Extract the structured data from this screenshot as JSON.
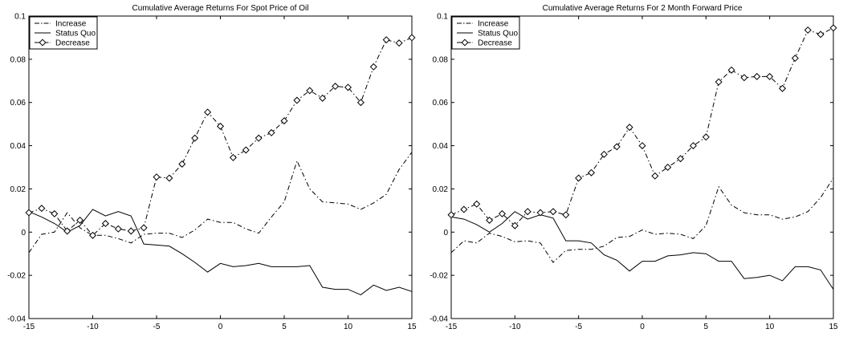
{
  "chart_data": [
    {
      "type": "line",
      "title": "Cumulative Average Returns For Spot Price of Oil",
      "xlabel": "",
      "ylabel": "",
      "xlim": [
        -15,
        15
      ],
      "ylim": [
        -0.04,
        0.1
      ],
      "xticks": [
        -15,
        -10,
        -5,
        0,
        5,
        10,
        15
      ],
      "yticks": [
        -0.04,
        -0.02,
        0,
        0.02,
        0.04,
        0.06,
        0.08,
        0.1
      ],
      "ytick_labels": [
        "-0.04",
        "-0.02",
        "0",
        "0.02",
        "0.04",
        "0.06",
        "0.08",
        "0.1"
      ],
      "grid": false,
      "legend_position": "top-left",
      "x": [
        -15,
        -14,
        -13,
        -12,
        -11,
        -10,
        -9,
        -8,
        -7,
        -6,
        -5,
        -4,
        -3,
        -2,
        -1,
        0,
        1,
        2,
        3,
        4,
        5,
        6,
        7,
        8,
        9,
        10,
        11,
        12,
        13,
        14,
        15
      ],
      "series": [
        {
          "name": "Increase",
          "style": "dashdot",
          "values": [
            -0.0095,
            -0.001,
            0.0,
            0.009,
            0.002,
            -0.0015,
            -0.0015,
            -0.003,
            -0.005,
            -0.001,
            -0.0005,
            -0.0005,
            -0.0025,
            0.001,
            0.006,
            0.0045,
            0.0045,
            0.0015,
            -0.0005,
            0.007,
            0.014,
            0.033,
            0.02,
            0.014,
            0.0135,
            0.013,
            0.0105,
            0.0135,
            0.0175,
            0.029,
            0.037
          ]
        },
        {
          "name": "Status Quo",
          "style": "solid",
          "values": [
            0.0095,
            0.007,
            0.004,
            0.0,
            0.003,
            0.0105,
            0.0075,
            0.0095,
            0.0075,
            -0.0055,
            -0.006,
            -0.0065,
            -0.01,
            -0.014,
            -0.0185,
            -0.0145,
            -0.016,
            -0.0155,
            -0.0145,
            -0.016,
            -0.016,
            -0.016,
            -0.0155,
            -0.0255,
            -0.0265,
            -0.0265,
            -0.029,
            -0.0245,
            -0.027,
            -0.0255,
            -0.0275
          ]
        },
        {
          "name": "Decrease",
          "style": "dashdot-diamond",
          "values": [
            0.009,
            0.011,
            0.0085,
            0.0005,
            0.0055,
            -0.0015,
            0.004,
            0.0015,
            0.0005,
            0.002,
            0.0255,
            0.025,
            0.0315,
            0.0435,
            0.0555,
            0.049,
            0.0345,
            0.038,
            0.0435,
            0.046,
            0.0515,
            0.061,
            0.0655,
            0.062,
            0.0675,
            0.067,
            0.06,
            0.0765,
            0.089,
            0.0875,
            0.09
          ]
        }
      ]
    },
    {
      "type": "line",
      "title": "Cumulative Average Returns For 2 Month Forward Price",
      "xlabel": "",
      "ylabel": "",
      "xlim": [
        -15,
        15
      ],
      "ylim": [
        -0.04,
        0.1
      ],
      "xticks": [
        -15,
        -10,
        -5,
        0,
        5,
        10,
        15
      ],
      "yticks": [
        -0.04,
        -0.02,
        0,
        0.02,
        0.04,
        0.06,
        0.08,
        0.1
      ],
      "ytick_labels": [
        "-0.04",
        "-0.02",
        "0",
        "0.02",
        "0.04",
        "0.06",
        "0.08",
        "0.1"
      ],
      "grid": false,
      "legend_position": "top-left",
      "x": [
        -15,
        -14,
        -13,
        -12,
        -11,
        -10,
        -9,
        -8,
        -7,
        -6,
        -5,
        -4,
        -3,
        -2,
        -1,
        0,
        1,
        2,
        3,
        4,
        5,
        6,
        7,
        8,
        9,
        10,
        11,
        12,
        13,
        14,
        15
      ],
      "series": [
        {
          "name": "Increase",
          "style": "dashdot",
          "values": [
            -0.0095,
            -0.004,
            -0.005,
            -0.0005,
            -0.002,
            -0.0045,
            -0.004,
            -0.005,
            -0.014,
            -0.0085,
            -0.008,
            -0.008,
            -0.0065,
            -0.0025,
            -0.002,
            0.001,
            -0.001,
            -0.0005,
            -0.001,
            -0.003,
            0.003,
            0.021,
            0.0125,
            0.009,
            0.008,
            0.008,
            0.006,
            0.007,
            0.0095,
            0.016,
            0.025
          ]
        },
        {
          "name": "Status Quo",
          "style": "solid",
          "values": [
            0.007,
            0.006,
            0.0035,
            0.0,
            0.004,
            0.0095,
            0.006,
            0.008,
            0.0065,
            -0.004,
            -0.004,
            -0.005,
            -0.0105,
            -0.013,
            -0.018,
            -0.0135,
            -0.0135,
            -0.011,
            -0.0105,
            -0.0095,
            -0.01,
            -0.0135,
            -0.0135,
            -0.0215,
            -0.021,
            -0.02,
            -0.0225,
            -0.016,
            -0.016,
            -0.0175,
            -0.0265
          ]
        },
        {
          "name": "Decrease",
          "style": "dashdot-diamond",
          "values": [
            0.008,
            0.0105,
            0.013,
            0.0055,
            0.0085,
            0.003,
            0.0095,
            0.009,
            0.0095,
            0.008,
            0.025,
            0.0275,
            0.036,
            0.0395,
            0.0485,
            0.04,
            0.026,
            0.03,
            0.034,
            0.04,
            0.044,
            0.0695,
            0.075,
            0.0715,
            0.072,
            0.072,
            0.0665,
            0.0805,
            0.0935,
            0.0915,
            0.0945
          ]
        }
      ]
    }
  ]
}
